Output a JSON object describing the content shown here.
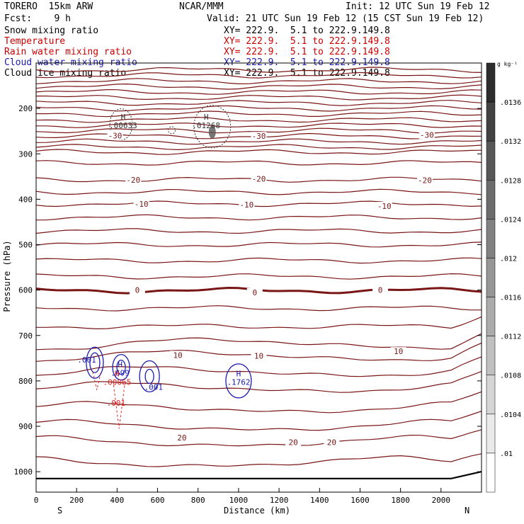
{
  "header": {
    "model": "TORERO  15km ARW",
    "center": "NCAR/MMM",
    "init": "Init: 12 UTC Sun 19 Feb 12",
    "fcst": "Fcst:    9 h",
    "valid": "Valid: 21 UTC Sun 19 Feb 12 (15 CST Sun 19 Feb 12)"
  },
  "fields": [
    {
      "name": "Snow mixing ratio",
      "xy": "XY= 222.9.  5.1 to 222.9.149.8",
      "color": "#000000"
    },
    {
      "name": "Temperature",
      "xy": "XY= 222.9.  5.1 to 222.9.149.8",
      "color": "#cc0000"
    },
    {
      "name": "Rain water mixing ratio",
      "xy": "XY= 222.9.  5.1 to 222.9.149.8",
      "color": "#cc0000"
    },
    {
      "name": "Cloud water mixing ratio",
      "xy": "XY= 222.9.  5.1 to 222.9.149.8",
      "color": "#1a1aaa"
    },
    {
      "name": "Cloud ice mixing ratio",
      "xy": "XY= 222.9.  5.1 to 222.9.149.8",
      "color": "#000000"
    }
  ],
  "colors": {
    "temp": "#7a1515",
    "rain": "#dd2222",
    "cloud": "#1a1ab0",
    "snow": "#333333"
  },
  "chart_data": {
    "type": "cross-section",
    "xlabel": "Distance (km)",
    "ylabel": "Pressure (hPa)",
    "xlim": [
      0,
      2200
    ],
    "ylim": [
      1045,
      100
    ],
    "x_ticks": [
      0,
      200,
      400,
      600,
      800,
      1000,
      1200,
      1400,
      1600,
      1800,
      2000
    ],
    "y_ticks": [
      200,
      300,
      400,
      500,
      600,
      700,
      800,
      900,
      1000
    ],
    "endpoints": {
      "left": "S",
      "right": "N"
    },
    "temperature_labels": [
      {
        "value": "-30",
        "x": 390,
        "p": 260
      },
      {
        "value": "-30",
        "x": 1100,
        "p": 261
      },
      {
        "value": "-30",
        "x": 1930,
        "p": 258
      },
      {
        "value": "-20",
        "x": 480,
        "p": 357
      },
      {
        "value": "-20",
        "x": 1100,
        "p": 355
      },
      {
        "value": "-20",
        "x": 1920,
        "p": 358
      },
      {
        "value": "-10",
        "x": 520,
        "p": 410
      },
      {
        "value": "-10",
        "x": 1040,
        "p": 412
      },
      {
        "value": "-10",
        "x": 1720,
        "p": 415
      },
      {
        "value": "0",
        "x": 500,
        "p": 600
      },
      {
        "value": "0",
        "x": 1080,
        "p": 605
      },
      {
        "value": "0",
        "x": 1700,
        "p": 600
      },
      {
        "value": "10",
        "x": 700,
        "p": 743
      },
      {
        "value": "10",
        "x": 1100,
        "p": 745
      },
      {
        "value": "10",
        "x": 1790,
        "p": 735
      },
      {
        "value": "20",
        "x": 720,
        "p": 925
      },
      {
        "value": "20",
        "x": 1270,
        "p": 935
      },
      {
        "value": "20",
        "x": 1460,
        "p": 935
      }
    ],
    "maxima": [
      {
        "label": "H",
        "value": ".00633",
        "x": 430,
        "p": 225,
        "field": "snow"
      },
      {
        "label": "H",
        "value": ".01268",
        "x": 840,
        "p": 225,
        "field": "snow"
      },
      {
        "label": "H",
        "value": ".699",
        "x": 415,
        "p": 770,
        "field": "cloud"
      },
      {
        "label": "H",
        "value": ".00065",
        "x": 400,
        "p": 790,
        "field": "rain"
      },
      {
        "label": "H",
        "value": ".1762",
        "x": 1000,
        "p": 790,
        "field": "cloud"
      }
    ],
    "minor_labels": [
      {
        "value": ".001",
        "x": 250,
        "p": 760,
        "field": "cloud"
      },
      {
        "value": ".001",
        "x": 580,
        "p": 820,
        "field": "cloud"
      },
      {
        "value": ".001",
        "x": 395,
        "p": 855,
        "field": "rain"
      }
    ],
    "colorbar": {
      "unit": "g kg⁻¹",
      "range": [
        0.0096,
        0.014
      ],
      "labels": [
        ".01",
        ".0104",
        ".0108",
        ".0112",
        ".0116",
        ".012",
        ".0124",
        ".0128",
        ".0132",
        ".0136"
      ]
    }
  }
}
